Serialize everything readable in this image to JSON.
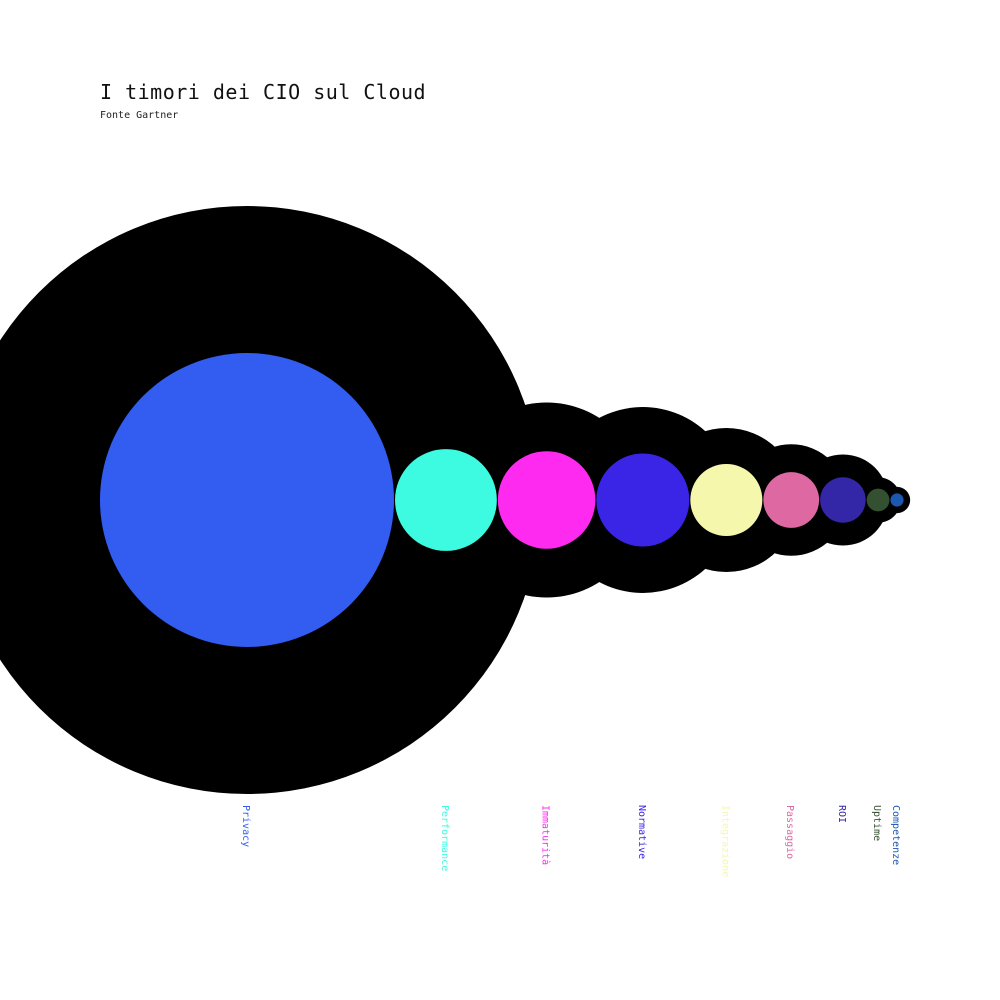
{
  "title": "I timori dei CIO sul Cloud",
  "subtitle": "Fonte Gartner",
  "chart_data": {
    "type": "bubble",
    "categories": [
      "Privacy",
      "Performance",
      "Immaturità",
      "Normative",
      "Integrazione",
      "Passaggio",
      "ROI",
      "Uptime",
      "Competenze"
    ],
    "series": [
      {
        "values": [
          100,
          12,
          11,
          10,
          6,
          3.6,
          2.4,
          0.6,
          0.2
        ]
      }
    ],
    "colors": [
      "#335cf0",
      "#3dfbe0",
      "#ff2af0",
      "#3a24e6",
      "#f4f7ac",
      "#dd68a2",
      "#3327a8",
      "#335030",
      "#1d58b0"
    ],
    "outer_ring_color": "#000000"
  }
}
